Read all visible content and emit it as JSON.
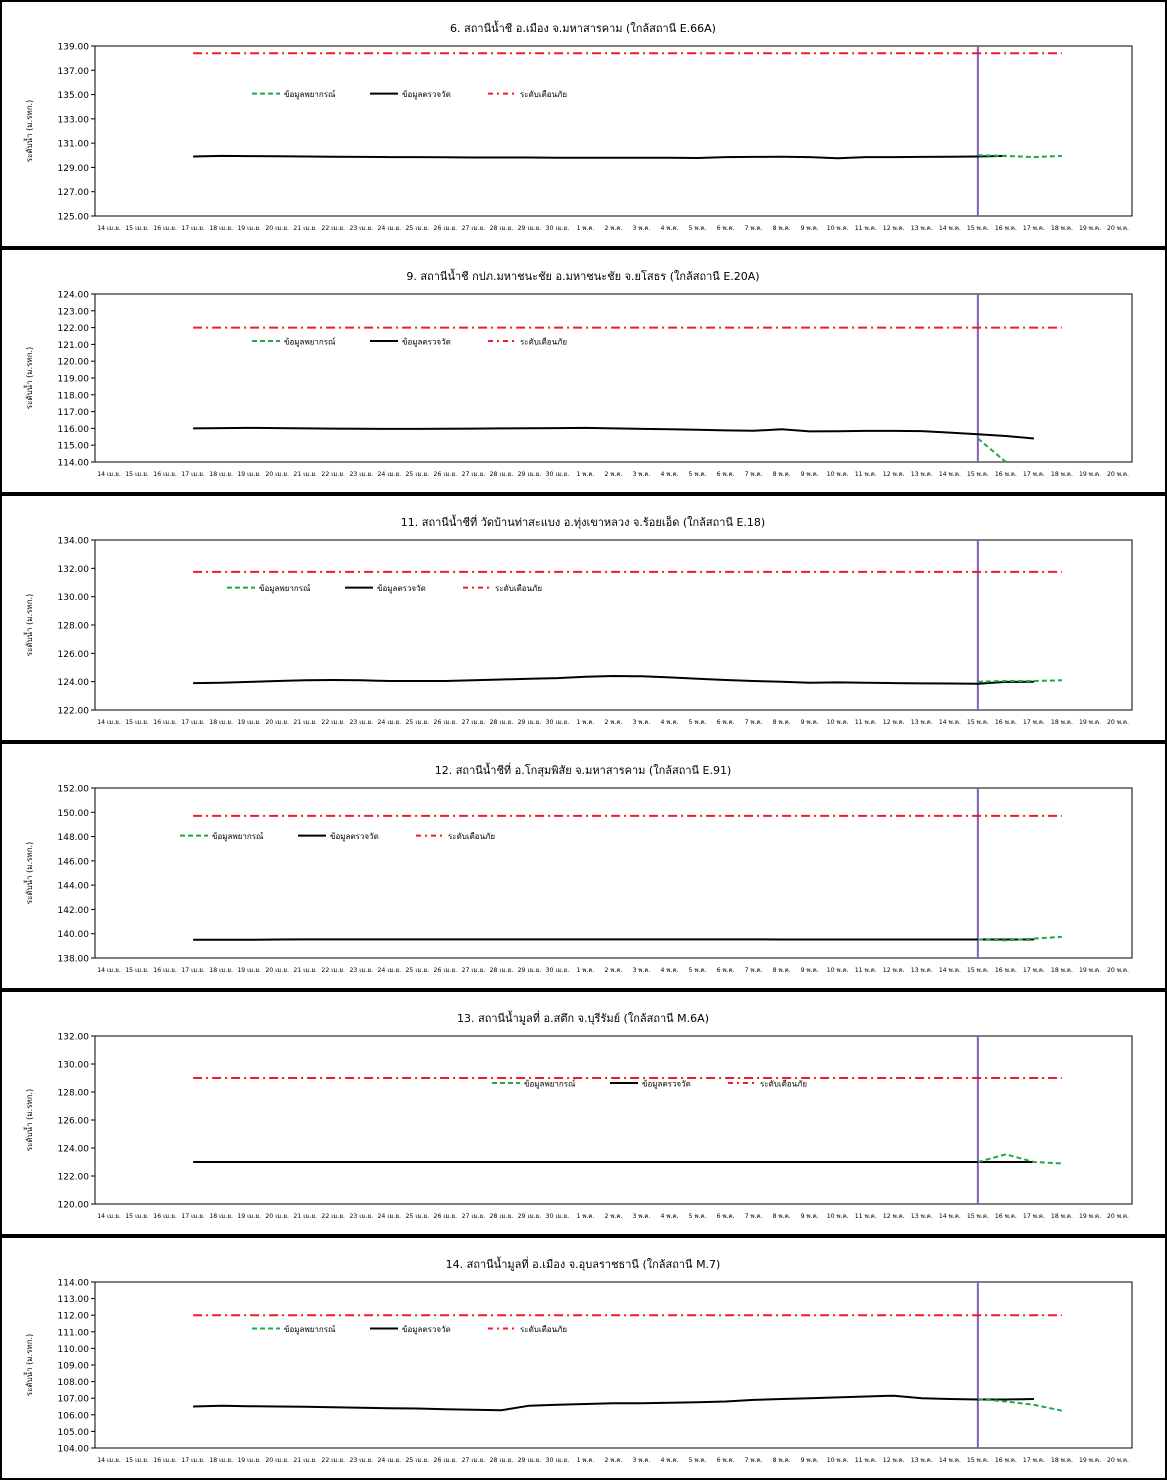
{
  "page": {
    "background": "#ffffff"
  },
  "colors": {
    "observed": "#000000",
    "forecast": "#21a84a",
    "warning": "#ee1c24",
    "today_marker": "#7f5fb3"
  },
  "x_labels": [
    "14 เม.ย.",
    "15 เม.ย.",
    "16 เม.ย.",
    "17 เม.ย.",
    "18 เม.ย.",
    "19 เม.ย.",
    "20 เม.ย.",
    "21 เม.ย.",
    "22 เม.ย.",
    "23 เม.ย.",
    "24 เม.ย.",
    "25 เม.ย.",
    "26 เม.ย.",
    "27 เม.ย.",
    "28 เม.ย.",
    "29 เม.ย.",
    "30 เม.ย.",
    "1 พ.ค.",
    "2 พ.ค.",
    "3 พ.ค.",
    "4 พ.ค.",
    "5 พ.ค.",
    "6 พ.ค.",
    "7 พ.ค.",
    "8 พ.ค.",
    "9 พ.ค.",
    "10 พ.ค.",
    "11 พ.ค.",
    "12 พ.ค.",
    "13 พ.ค.",
    "14 พ.ค.",
    "15 พ.ค.",
    "16 พ.ค.",
    "17 พ.ค.",
    "18 พ.ค.",
    "19 พ.ค.",
    "20 พ.ค."
  ],
  "chart_data": [
    {
      "type": "line",
      "title": "6. สถานีน้ำชี อ.เมือง จ.มหาสารคาม (ใกล้สถานี E.66A)",
      "ylabel": "ระดับน้ำ (ม.รทก.)",
      "ylim": [
        125,
        139
      ],
      "yticks": [
        125,
        127,
        129,
        131,
        133,
        135,
        137,
        139
      ],
      "ytick_labels": [
        "125.00",
        "127.00",
        "129.00",
        "131.00",
        "133.00",
        "135.00",
        "137.00",
        "139.00"
      ],
      "today_index": 31,
      "legend": {
        "placement": "upper-left",
        "forecast": "ข้อมูลพยากรณ์",
        "observed": "ข้อมูลตรวจวัด",
        "warning": "ระดับเตือนภัย"
      },
      "series": [
        {
          "name": "ข้อมูลตรวจวัด",
          "role": "observed",
          "start_index": 3,
          "values": [
            129.9,
            129.95,
            129.93,
            129.92,
            129.9,
            129.88,
            129.87,
            129.85,
            129.85,
            129.83,
            129.82,
            129.82,
            129.82,
            129.8,
            129.8,
            129.8,
            129.8,
            129.8,
            129.78,
            129.85,
            129.87,
            129.88,
            129.85,
            129.75,
            129.85,
            129.85,
            129.87,
            129.88,
            129.9,
            129.95
          ]
        },
        {
          "name": "ข้อมูลพยากรณ์",
          "role": "forecast",
          "start_index": 31,
          "values": [
            130.0,
            129.95,
            129.85,
            129.95
          ]
        },
        {
          "name": "ระดับเตือนภัย",
          "role": "warning",
          "start_index": 3,
          "values": [
            138.4,
            138.4,
            138.4,
            138.4,
            138.4,
            138.4,
            138.4,
            138.4,
            138.4,
            138.4,
            138.4,
            138.4,
            138.4,
            138.4,
            138.4,
            138.4,
            138.4,
            138.4,
            138.4,
            138.4,
            138.4,
            138.4,
            138.4,
            138.4,
            138.4,
            138.4,
            138.4,
            138.4,
            138.4,
            138.4,
            138.4,
            138.4
          ]
        }
      ]
    },
    {
      "type": "line",
      "title": "9. สถานีน้ำชี กปภ.มหาชนะชัย อ.มหาชนะชัย จ.ยโสธร (ใกล้สถานี E.20A)",
      "ylabel": "ระดับน้ำ (ม.รทก.)",
      "ylim": [
        114,
        124
      ],
      "yticks": [
        114,
        115,
        116,
        117,
        118,
        119,
        120,
        121,
        122,
        123,
        124
      ],
      "ytick_labels": [
        "114.00",
        "115.00",
        "116.00",
        "117.00",
        "118.00",
        "119.00",
        "120.00",
        "121.00",
        "122.00",
        "123.00",
        "124.00"
      ],
      "today_index": 31,
      "legend": {
        "placement": "upper-left",
        "forecast": "ข้อมูลพยากรณ์",
        "observed": "ข้อมูลตรวจวัด",
        "warning": "ระดับเตือนภัย"
      },
      "series": [
        {
          "name": "ข้อมูลตรวจวัด",
          "role": "observed",
          "start_index": 3,
          "values": [
            116.0,
            116.02,
            116.03,
            116.02,
            116.0,
            115.99,
            115.98,
            115.97,
            115.97,
            115.98,
            115.99,
            116.0,
            116.01,
            116.02,
            116.03,
            116.0,
            115.97,
            115.95,
            115.92,
            115.88,
            115.86,
            115.95,
            115.82,
            115.83,
            115.85,
            115.85,
            115.84,
            115.75,
            115.65,
            115.55,
            115.4
          ]
        },
        {
          "name": "ข้อมูลพยากรณ์",
          "role": "forecast",
          "start_index": 31,
          "values": [
            115.4,
            114.0
          ]
        },
        {
          "name": "ระดับเตือนภัย",
          "role": "warning",
          "start_index": 3,
          "values": [
            122.0,
            122.0,
            122.0,
            122.0,
            122.0,
            122.0,
            122.0,
            122.0,
            122.0,
            122.0,
            122.0,
            122.0,
            122.0,
            122.0,
            122.0,
            122.0,
            122.0,
            122.0,
            122.0,
            122.0,
            122.0,
            122.0,
            122.0,
            122.0,
            122.0,
            122.0,
            122.0,
            122.0,
            122.0,
            122.0,
            122.0,
            122.0
          ]
        }
      ]
    },
    {
      "type": "line",
      "title": "11. สถานีน้ำชีที่ วัดบ้านท่าสะแบง อ.ทุ่งเขาหลวง จ.ร้อยเอ็ด (ใกล้สถานี E.18)",
      "ylabel": "ระดับน้ำ (ม.รทก.)",
      "ylim": [
        122,
        134
      ],
      "yticks": [
        122,
        124,
        126,
        128,
        130,
        132,
        134
      ],
      "ytick_labels": [
        "122.00",
        "124.00",
        "126.00",
        "128.00",
        "130.00",
        "132.00",
        "134.00"
      ],
      "today_index": 31,
      "legend": {
        "placement": "upper-left",
        "forecast": "ข้อมูลพยากรณ์",
        "observed": "ข้อมูลตรวจวัด",
        "warning": "ระดับเตือนภัย"
      },
      "series": [
        {
          "name": "ข้อมูลตรวจวัด",
          "role": "observed",
          "start_index": 3,
          "values": [
            123.9,
            123.92,
            123.98,
            124.05,
            124.1,
            124.12,
            124.1,
            124.05,
            124.05,
            124.05,
            124.1,
            124.15,
            124.2,
            124.25,
            124.35,
            124.4,
            124.38,
            124.3,
            124.2,
            124.12,
            124.05,
            124.0,
            123.92,
            123.95,
            123.92,
            123.9,
            123.88,
            123.87,
            123.85,
            123.98,
            124.0
          ]
        },
        {
          "name": "ข้อมูลพยากรณ์",
          "role": "forecast",
          "start_index": 31,
          "values": [
            124.0,
            124.05,
            124.05,
            124.1
          ]
        },
        {
          "name": "ระดับเตือนภัย",
          "role": "warning",
          "start_index": 3,
          "values": [
            131.75,
            131.75,
            131.75,
            131.75,
            131.75,
            131.75,
            131.75,
            131.75,
            131.75,
            131.75,
            131.75,
            131.75,
            131.75,
            131.75,
            131.75,
            131.75,
            131.75,
            131.75,
            131.75,
            131.75,
            131.75,
            131.75,
            131.75,
            131.75,
            131.75,
            131.75,
            131.75,
            131.75,
            131.75,
            131.75,
            131.75,
            131.75
          ]
        }
      ]
    },
    {
      "type": "line",
      "title": "12. สถานีน้ำชีที่ อ.โกสุมพิสัย จ.มหาสารคาม (ใกล้สถานี E.91)",
      "ylabel": "ระดับน้ำ (ม.รทก.)",
      "ylim": [
        138,
        152
      ],
      "yticks": [
        138,
        140,
        142,
        144,
        146,
        148,
        150,
        152
      ],
      "ytick_labels": [
        "138.00",
        "140.00",
        "142.00",
        "144.00",
        "146.00",
        "148.00",
        "150.00",
        "152.00"
      ],
      "today_index": 31,
      "legend": {
        "placement": "upper-left",
        "forecast": "ข้อมูลพยากรณ์",
        "observed": "ข้อมูลตรวจวัด",
        "warning": "ระดับเตือนภัย"
      },
      "series": [
        {
          "name": "ข้อมูลตรวจวัด",
          "role": "observed",
          "start_index": 3,
          "values": [
            139.5,
            139.5,
            139.5,
            139.52,
            139.53,
            139.53,
            139.53,
            139.53,
            139.53,
            139.53,
            139.53,
            139.53,
            139.53,
            139.53,
            139.53,
            139.53,
            139.53,
            139.53,
            139.53,
            139.53,
            139.53,
            139.52,
            139.52,
            139.52,
            139.52,
            139.52,
            139.52,
            139.52,
            139.52,
            139.52,
            139.52
          ]
        },
        {
          "name": "ข้อมูลพยากรณ์",
          "role": "forecast",
          "start_index": 31,
          "values": [
            139.52,
            139.45,
            139.6,
            139.75
          ]
        },
        {
          "name": "ระดับเตือนภัย",
          "role": "warning",
          "start_index": 3,
          "values": [
            149.7,
            149.7,
            149.7,
            149.7,
            149.7,
            149.7,
            149.7,
            149.7,
            149.7,
            149.7,
            149.7,
            149.7,
            149.7,
            149.7,
            149.7,
            149.7,
            149.7,
            149.7,
            149.7,
            149.7,
            149.7,
            149.7,
            149.7,
            149.7,
            149.7,
            149.7,
            149.7,
            149.7,
            149.7,
            149.7,
            149.7,
            149.7
          ]
        }
      ]
    },
    {
      "type": "line",
      "title": "13. สถานีน้ำมูลที่ อ.สตึก จ.บุรีรัมย์ (ใกล้สถานี M.6A)",
      "ylabel": "ระดับน้ำ (ม.รทก.)",
      "ylim": [
        120,
        132
      ],
      "yticks": [
        120,
        122,
        124,
        126,
        128,
        130,
        132
      ],
      "ytick_labels": [
        "120.00",
        "122.00",
        "124.00",
        "126.00",
        "128.00",
        "130.00",
        "132.00"
      ],
      "today_index": 31,
      "legend": {
        "placement": "upper-center",
        "forecast": "ข้อมูลพยากรณ์",
        "observed": "ข้อมูลตรวจวัด",
        "warning": "ระดับเตือนภัย"
      },
      "series": [
        {
          "name": "ข้อมูลตรวจวัด",
          "role": "observed",
          "start_index": 3,
          "values": [
            123.0,
            123.0,
            123.0,
            123.0,
            123.0,
            123.0,
            123.0,
            123.0,
            123.0,
            123.0,
            123.0,
            123.0,
            123.0,
            123.0,
            123.0,
            123.0,
            123.0,
            123.0,
            123.0,
            123.0,
            123.0,
            123.0,
            123.0,
            123.0,
            123.0,
            123.0,
            123.0,
            123.0,
            123.0,
            123.0,
            123.0
          ]
        },
        {
          "name": "ข้อมูลพยากรณ์",
          "role": "forecast",
          "start_index": 31,
          "values": [
            123.0,
            123.55,
            123.0,
            122.9
          ]
        },
        {
          "name": "ระดับเตือนภัย",
          "role": "warning",
          "start_index": 3,
          "values": [
            129.0,
            129.0,
            129.0,
            129.0,
            129.0,
            129.0,
            129.0,
            129.0,
            129.0,
            129.0,
            129.0,
            129.0,
            129.0,
            129.0,
            129.0,
            129.0,
            129.0,
            129.0,
            129.0,
            129.0,
            129.0,
            129.0,
            129.0,
            129.0,
            129.0,
            129.0,
            129.0,
            129.0,
            129.0,
            129.0,
            129.0,
            129.0
          ]
        }
      ]
    },
    {
      "type": "line",
      "title": "14. สถานีน้ำมูลที่ อ.เมือง จ.อุบลราชธานี (ใกล้สถานี M.7)",
      "ylabel": "ระดับน้ำ (ม.รทก.)",
      "ylim": [
        104,
        114
      ],
      "yticks": [
        104,
        105,
        106,
        107,
        108,
        109,
        110,
        111,
        112,
        113,
        114
      ],
      "ytick_labels": [
        "104.00",
        "105.00",
        "106.00",
        "107.00",
        "108.00",
        "109.00",
        "110.00",
        "111.00",
        "112.00",
        "113.00",
        "114.00"
      ],
      "today_index": 31,
      "legend": {
        "placement": "upper-left",
        "forecast": "ข้อมูลพยากรณ์",
        "observed": "ข้อมูลตรวจวัด",
        "warning": "ระดับเตือนภัย"
      },
      "series": [
        {
          "name": "ข้อมูลตรวจวัด",
          "role": "observed",
          "start_index": 3,
          "values": [
            106.5,
            106.55,
            106.52,
            106.5,
            106.48,
            106.45,
            106.42,
            106.4,
            106.38,
            106.33,
            106.3,
            106.28,
            106.55,
            106.6,
            106.65,
            106.7,
            106.7,
            106.72,
            106.75,
            106.8,
            106.9,
            106.95,
            107.0,
            107.05,
            107.1,
            107.15,
            107.0,
            106.95,
            106.92,
            106.92,
            106.95
          ]
        },
        {
          "name": "ข้อมูลพยากรณ์",
          "role": "forecast",
          "start_index": 31,
          "values": [
            106.95,
            106.8,
            106.6,
            106.25
          ]
        },
        {
          "name": "ระดับเตือนภัย",
          "role": "warning",
          "start_index": 3,
          "values": [
            112.0,
            112.0,
            112.0,
            112.0,
            112.0,
            112.0,
            112.0,
            112.0,
            112.0,
            112.0,
            112.0,
            112.0,
            112.0,
            112.0,
            112.0,
            112.0,
            112.0,
            112.0,
            112.0,
            112.0,
            112.0,
            112.0,
            112.0,
            112.0,
            112.0,
            112.0,
            112.0,
            112.0,
            112.0,
            112.0,
            112.0,
            112.0
          ]
        }
      ]
    }
  ]
}
